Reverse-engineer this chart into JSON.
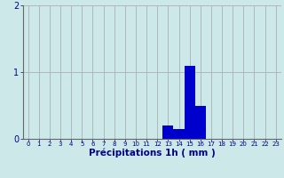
{
  "hours": [
    0,
    1,
    2,
    3,
    4,
    5,
    6,
    7,
    8,
    9,
    10,
    11,
    12,
    13,
    14,
    15,
    16,
    17,
    18,
    19,
    20,
    21,
    22,
    23
  ],
  "values": [
    0,
    0,
    0,
    0,
    0,
    0,
    0,
    0,
    0,
    0,
    0,
    0,
    0,
    0.2,
    0.15,
    1.1,
    0.5,
    0,
    0,
    0,
    0,
    0,
    0,
    0
  ],
  "bar_color": "#0000cc",
  "bg_color": "#cce8e8",
  "grid_color": "#b0b8b8",
  "xlabel": "Précipitations 1h ( mm )",
  "xlabel_color": "#00008b",
  "tick_color": "#00008b",
  "ylim": [
    0,
    2
  ],
  "yticks": [
    0,
    1,
    2
  ],
  "xlabel_fontsize": 7.5
}
